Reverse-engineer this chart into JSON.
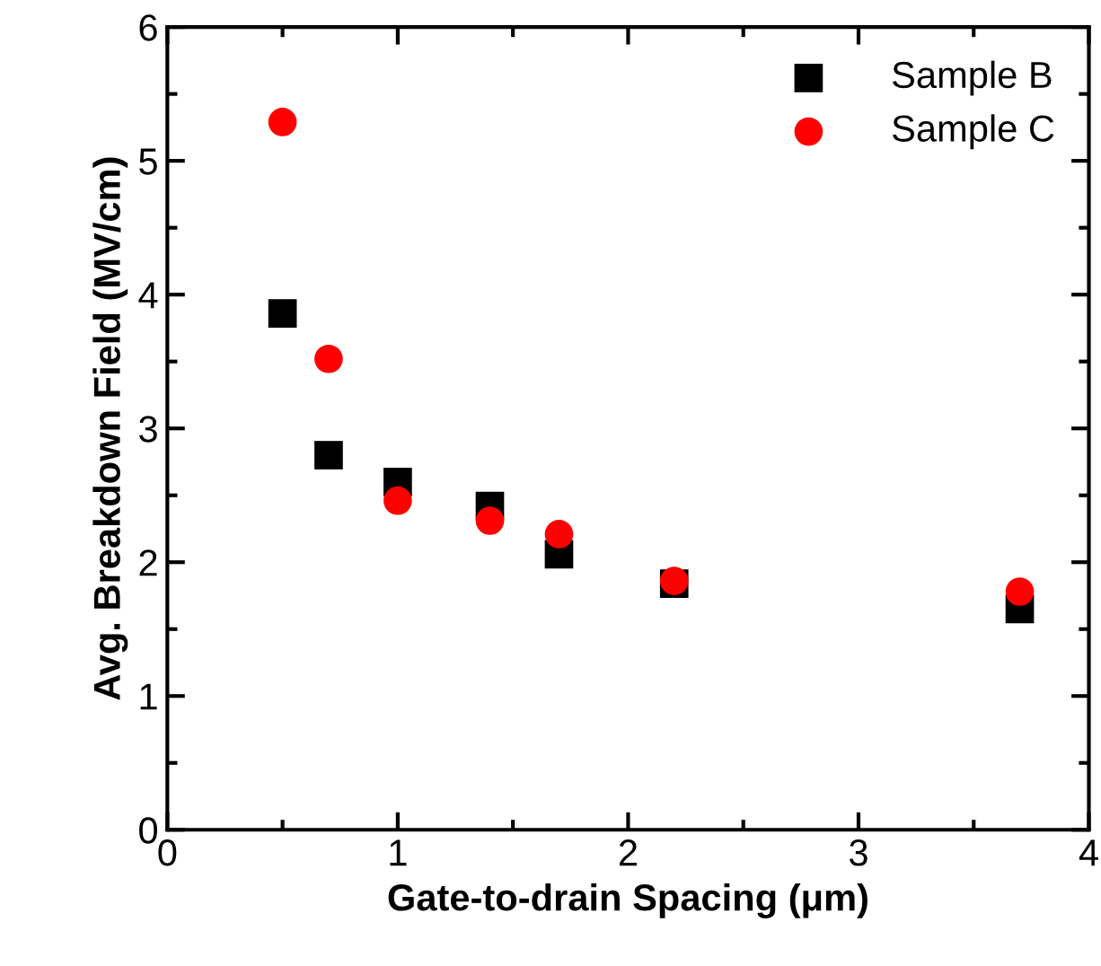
{
  "chart_data": {
    "type": "scatter",
    "xlabel": "Gate-to-drain Spacing (μm)",
    "ylabel": "Avg. Breakdown Field (MV/cm)",
    "xlim": [
      0,
      4
    ],
    "ylim": [
      0,
      6
    ],
    "xticks": [
      0,
      1,
      2,
      3,
      4
    ],
    "yticks": [
      0,
      1,
      2,
      3,
      4,
      5,
      6
    ],
    "grid": false,
    "legend": "top right",
    "series": [
      {
        "name": "Sample B",
        "color": "#000000",
        "marker": "square",
        "x": [
          0.5,
          0.7,
          1.0,
          1.4,
          1.7,
          2.2,
          3.7
        ],
        "values": [
          3.86,
          2.8,
          2.6,
          2.42,
          2.06,
          1.84,
          1.65
        ]
      },
      {
        "name": "Sample C",
        "color": "#ff0000",
        "marker": "circle",
        "x": [
          0.5,
          0.7,
          1.0,
          1.4,
          1.7,
          2.2,
          3.7
        ],
        "values": [
          5.29,
          3.52,
          2.46,
          2.31,
          2.21,
          1.86,
          1.78
        ]
      }
    ]
  }
}
